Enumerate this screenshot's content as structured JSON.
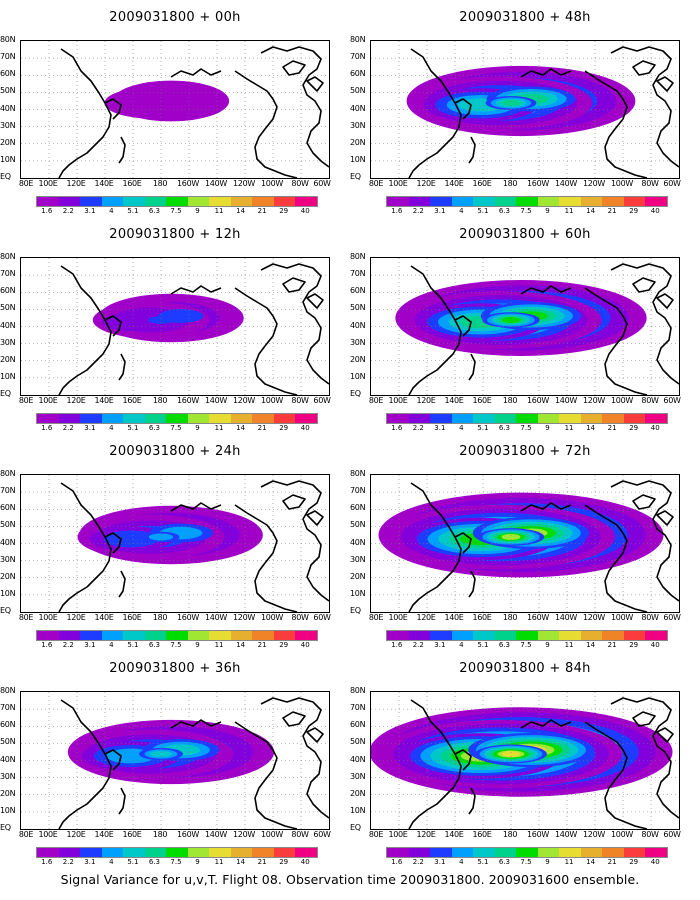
{
  "panels": [
    {
      "title": "2009031800 + 00h",
      "level": 0.05
    },
    {
      "title": "2009031800 + 12h",
      "level": 0.18
    },
    {
      "title": "2009031800 + 24h",
      "level": 0.35
    },
    {
      "title": "2009031800 + 36h",
      "level": 0.45
    },
    {
      "title": "2009031800 + 48h",
      "level": 0.55
    },
    {
      "title": "2009031800 + 60h",
      "level": 0.65
    },
    {
      "title": "2009031800 + 72h",
      "level": 0.8
    },
    {
      "title": "2009031800 + 84h",
      "level": 0.88
    }
  ],
  "lat_labels": [
    "80N",
    "70N",
    "60N",
    "50N",
    "40N",
    "30N",
    "20N",
    "10N",
    "EQ"
  ],
  "lon_labels": [
    "80E",
    "100E",
    "120E",
    "140E",
    "160E",
    "180",
    "160W",
    "140W",
    "120W",
    "100W",
    "80W",
    "60W"
  ],
  "colorbar": {
    "labels": [
      "1.6",
      "2.2",
      "3.1",
      "4",
      "5.1",
      "6.3",
      "7.5",
      "9",
      "11",
      "14",
      "21",
      "29",
      "40"
    ],
    "colors": [
      "#a000c8",
      "#8200dc",
      "#1e3cff",
      "#00a0ff",
      "#00c8c8",
      "#00d28c",
      "#00dc00",
      "#a0e632",
      "#e6dc32",
      "#e6af2d",
      "#f08228",
      "#fa3c3c",
      "#f00082"
    ]
  },
  "caption": "Signal Variance for u,v,T. Flight 08. Observation time 2009031800. 2009031600 ensemble."
}
